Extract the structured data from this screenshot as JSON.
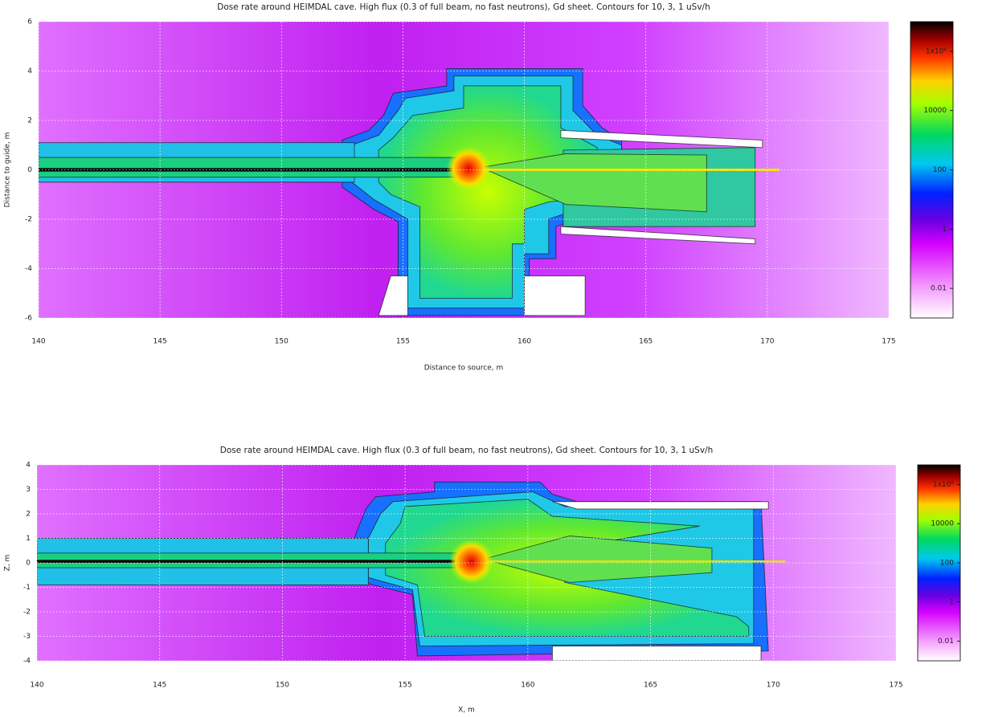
{
  "chart_data": [
    {
      "type": "heatmap",
      "title": "Dose rate around HEIMDAL cave. High flux (0.3 of full beam, no fast neutrons), Gd sheet. Contours for 10, 3, 1 uSv/h",
      "x_label": "Distance to source, m",
      "y_label": "Distance to guide, m",
      "xlim": [
        140,
        175
      ],
      "xticks": [
        140,
        145,
        150,
        155,
        160,
        165,
        170,
        175
      ],
      "ylim": [
        -6,
        6
      ],
      "yticks": [
        -6,
        -4,
        -2,
        0,
        2,
        4,
        6
      ],
      "grid": true,
      "color_scale": "log",
      "clim": [
        0.001,
        10000000
      ],
      "cticks": [
        0.01,
        1,
        100,
        10000,
        {
          "value": 1000000,
          "label": "1x10⁶"
        }
      ]
    },
    {
      "type": "heatmap",
      "title": "Dose rate around HEIMDAL cave.  High flux (0.3 of full beam, no fast neutrons), Gd sheet. Contours for 10, 3, 1 uSv/h",
      "x_label": "X, m",
      "y_label": "Z, m",
      "xlim": [
        140,
        175
      ],
      "xticks": [
        140,
        145,
        150,
        155,
        160,
        165,
        170,
        175
      ],
      "ylim": [
        -4,
        4
      ],
      "yticks": [
        -4,
        -3,
        -2,
        -1,
        0,
        1,
        2,
        3,
        4
      ],
      "grid": true,
      "color_scale": "log",
      "clim": [
        0.001,
        10000000
      ],
      "cticks": [
        0.01,
        1,
        100,
        10000,
        {
          "value": 1000000,
          "label": "1x10⁶"
        }
      ]
    }
  ]
}
